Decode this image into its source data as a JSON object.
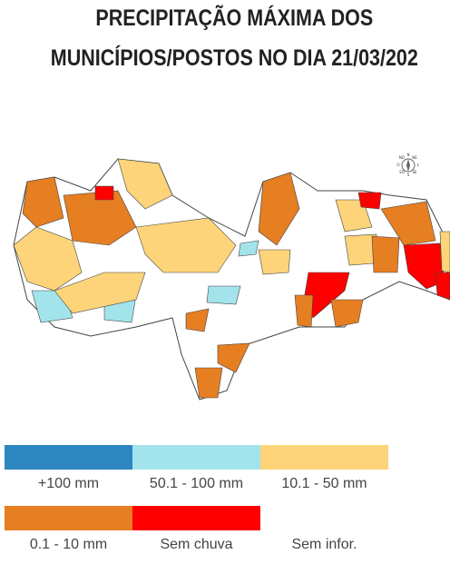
{
  "title": [
    "PRECIPITAÇÃO MÁXIMA DOS",
    "MUNICÍPIOS/POSTOS NO DIA 21/03/202"
  ],
  "compass": [
    "N",
    "NE",
    "L",
    "SE",
    "S",
    "SO",
    "O",
    "NO"
  ],
  "legend": [
    {
      "label": "+100 mm",
      "color": "#2e86c1"
    },
    {
      "label": "50.1 - 100 mm",
      "color": "#a3e4ec"
    },
    {
      "label": "10.1 - 50 mm",
      "color": "#fdd47a"
    },
    {
      "label": "0.1 - 10 mm",
      "color": "#e67e22"
    },
    {
      "label": "Sem chuva",
      "color": "#ff0000"
    },
    {
      "label": "Sem infor.",
      "color": "#ffffff"
    }
  ]
}
